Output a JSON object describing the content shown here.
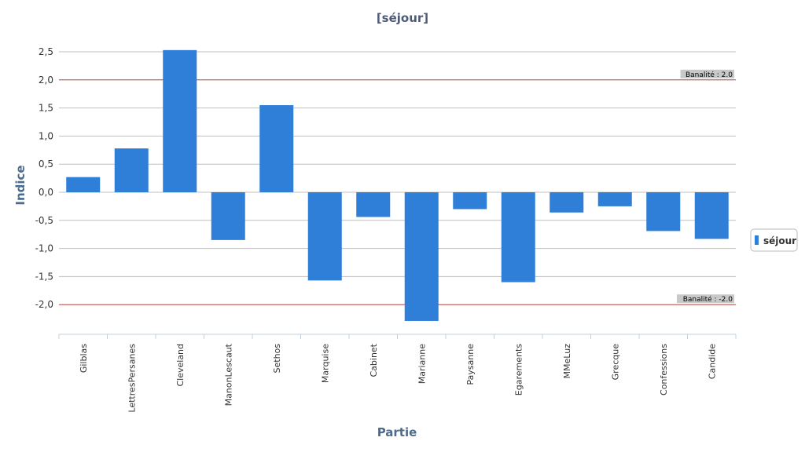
{
  "chart_data": {
    "type": "bar",
    "title": "[séjour]",
    "xlabel": "Partie",
    "ylabel": "Indice",
    "categories": [
      "Gilblas",
      "LettresPersanes",
      "Cleveland",
      "ManonLescaut",
      "Sethos",
      "Marquise",
      "Cabinet",
      "Marianne",
      "Paysanne",
      "Egarements",
      "MMeLuz",
      "Grecque",
      "Confessions",
      "Candide"
    ],
    "series": [
      {
        "name": "séjour",
        "color": "#2f7ed8",
        "values": [
          0.27,
          0.78,
          2.53,
          -0.85,
          1.55,
          -1.57,
          -0.44,
          -2.29,
          -0.3,
          -1.6,
          -0.36,
          -0.25,
          -0.69,
          -0.83
        ]
      }
    ],
    "yticks": [
      "2,5",
      "2,0",
      "1,5",
      "1,0",
      "0,5",
      "0,0",
      "-0,5",
      "-1,0",
      "-1,5",
      "-2,0"
    ],
    "ytick_values": [
      2.5,
      2.0,
      1.5,
      1.0,
      0.5,
      0.0,
      -0.5,
      -1.0,
      -1.5,
      -2.0
    ],
    "ylim": [
      -2.5,
      2.5
    ],
    "grid": true,
    "legend": "right",
    "reference_lines": [
      {
        "value": 2.0,
        "label": "Banalité : 2.0",
        "color": "#c0504d"
      },
      {
        "value": -2.0,
        "label": "Banalité : -2.0",
        "color": "#c0504d"
      }
    ]
  }
}
